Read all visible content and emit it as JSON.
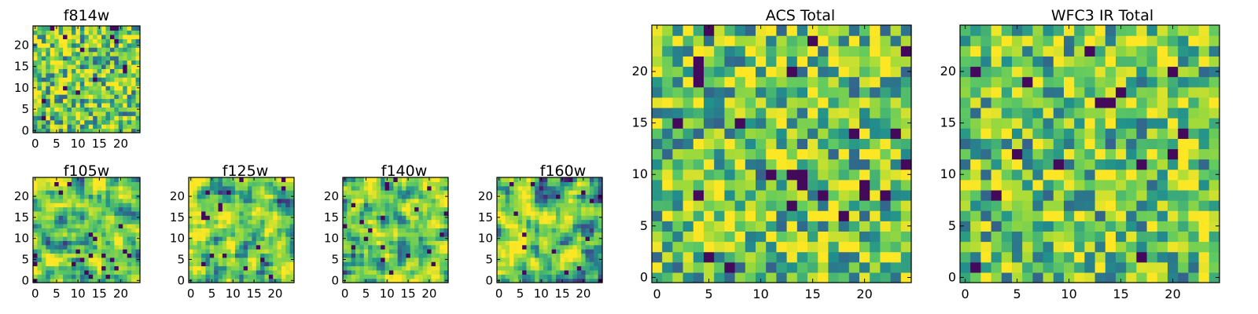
{
  "chart_data": [
    {
      "type": "heatmap",
      "title": "f814w",
      "xticks": [
        "0",
        "5",
        "10",
        "15",
        "20"
      ],
      "yticks": [
        "0",
        "5",
        "10",
        "15",
        "20"
      ],
      "xlim": [
        0,
        25
      ],
      "ylim": [
        0,
        25
      ],
      "colormap": "viridis",
      "data_note": "25x25 pixel grid"
    },
    {
      "type": "heatmap",
      "title": "f105w",
      "xticks": [
        "0",
        "5",
        "10",
        "15",
        "20"
      ],
      "yticks": [
        "0",
        "5",
        "10",
        "15",
        "20"
      ],
      "xlim": [
        0,
        25
      ],
      "ylim": [
        0,
        25
      ],
      "colormap": "viridis"
    },
    {
      "type": "heatmap",
      "title": "f125w",
      "xticks": [
        "0",
        "5",
        "10",
        "15",
        "20"
      ],
      "yticks": [
        "0",
        "5",
        "10",
        "15",
        "20"
      ],
      "xlim": [
        0,
        25
      ],
      "ylim": [
        0,
        25
      ],
      "colormap": "viridis"
    },
    {
      "type": "heatmap",
      "title": "f140w",
      "xticks": [
        "0",
        "5",
        "10",
        "15",
        "20"
      ],
      "yticks": [
        "0",
        "5",
        "10",
        "15",
        "20"
      ],
      "xlim": [
        0,
        25
      ],
      "ylim": [
        0,
        25
      ],
      "colormap": "viridis"
    },
    {
      "type": "heatmap",
      "title": "f160w",
      "xticks": [
        "0",
        "5",
        "10",
        "15",
        "20"
      ],
      "yticks": [
        "0",
        "5",
        "10",
        "15",
        "20"
      ],
      "xlim": [
        0,
        25
      ],
      "ylim": [
        0,
        25
      ],
      "colormap": "viridis"
    },
    {
      "type": "heatmap",
      "title": "ACS Total",
      "xticks": [
        "0",
        "5",
        "10",
        "15",
        "20"
      ],
      "yticks": [
        "0",
        "5",
        "10",
        "15",
        "20"
      ],
      "xlim": [
        0,
        25
      ],
      "ylim": [
        0,
        25
      ],
      "colormap": "viridis"
    },
    {
      "type": "heatmap",
      "title": "WFC3 IR Total",
      "xticks": [
        "0",
        "5",
        "10",
        "15",
        "20"
      ],
      "yticks": [
        "0",
        "5",
        "10",
        "15",
        "20"
      ],
      "xlim": [
        0,
        25
      ],
      "ylim": [
        0,
        25
      ],
      "colormap": "viridis"
    }
  ],
  "colors": {
    "viridis": [
      "#440154",
      "#3b528b",
      "#21918c",
      "#5ec962",
      "#a0da39",
      "#fde725"
    ],
    "axis": "#000000",
    "background": "#ffffff"
  }
}
